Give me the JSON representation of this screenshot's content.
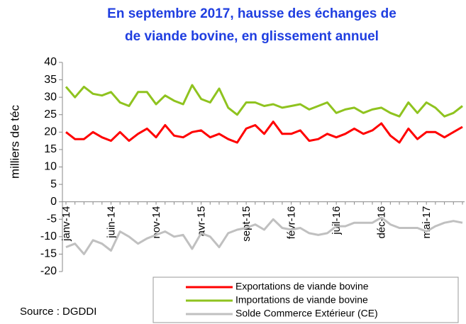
{
  "chart_data": {
    "type": "line",
    "title": [
      "En septembre 2017, hausse des échanges de",
      "de viande bovine, en glissement annuel"
    ],
    "y_label": "milliers de téc",
    "source": "Source : DGDDI",
    "categories": [
      "janv-14",
      null,
      null,
      null,
      null,
      "juin-14",
      null,
      null,
      null,
      null,
      "nov-14",
      null,
      null,
      null,
      null,
      "avr-15",
      null,
      null,
      null,
      null,
      "sept-15",
      null,
      null,
      null,
      null,
      "févr-16",
      null,
      null,
      null,
      null,
      "juil-16",
      null,
      null,
      null,
      null,
      "déc-16",
      null,
      null,
      null,
      null,
      "mai-17",
      null,
      null,
      null,
      null
    ],
    "series": [
      {
        "name": "Exportations de viande bovine",
        "color": "#ff0000",
        "values": [
          20,
          18,
          18,
          20,
          18.5,
          17.5,
          20,
          17.5,
          19.5,
          21,
          18.5,
          22,
          19,
          18.5,
          20,
          20.5,
          18.5,
          19.5,
          18,
          17,
          21,
          22,
          19.5,
          23,
          19.5,
          19.5,
          20.5,
          17.5,
          18,
          19.5,
          18.5,
          19.5,
          21,
          19.5,
          20.5,
          22.5,
          19,
          17,
          21,
          18,
          20,
          20,
          18.5,
          20,
          21.5
        ]
      },
      {
        "name": "Importations de viande bovine",
        "color": "#8fc31f",
        "values": [
          33,
          30,
          33,
          31,
          30.5,
          31.5,
          28.5,
          27.5,
          31.5,
          31.5,
          28,
          30.5,
          29,
          28,
          33.5,
          29.5,
          28.5,
          32.5,
          27,
          25,
          28.5,
          28.5,
          27.5,
          28,
          27,
          27.5,
          28,
          26.5,
          27.5,
          28.5,
          25.5,
          26.5,
          27,
          25.5,
          26.5,
          27,
          25.5,
          24.5,
          28.5,
          25.5,
          28.5,
          27,
          24.5,
          25.5,
          27.5
        ]
      },
      {
        "name": "Solde Commerce Extérieur (CE)",
        "color": "#c0c0c0",
        "values": [
          -13,
          -12,
          -15,
          -11,
          -12,
          -14,
          -8.5,
          -10,
          -12,
          -10.5,
          -9.5,
          -8.5,
          -10,
          -9.5,
          -13.5,
          -9,
          -10,
          -13,
          -9,
          -8,
          -7.5,
          -6.5,
          -8,
          -5,
          -7.5,
          -8,
          -7.5,
          -9,
          -9.5,
          -9,
          -7,
          -7,
          -6,
          -6,
          -6,
          -4.5,
          -6.5,
          -7.5,
          -7.5,
          -7.5,
          -8.5,
          -7,
          -6,
          -5.5,
          -6
        ]
      }
    ],
    "ylim": [
      -20,
      40
    ],
    "yticks": [
      -20,
      -15,
      -10,
      -5,
      0,
      5,
      10,
      15,
      20,
      25,
      30,
      35,
      40
    ]
  }
}
